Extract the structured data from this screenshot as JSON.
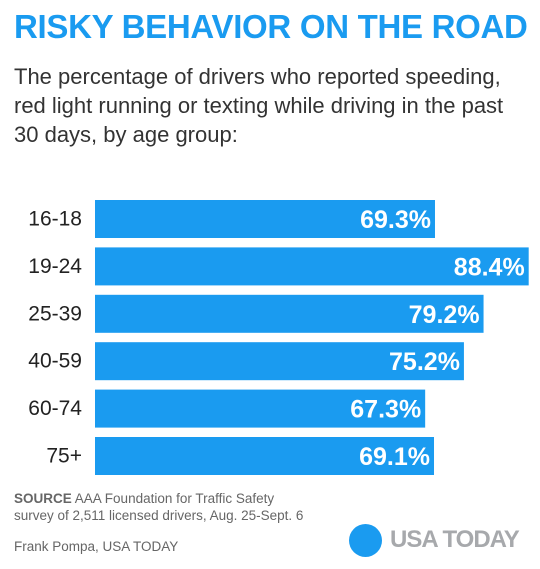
{
  "title": "RISKY BEHAVIOR ON THE ROAD",
  "subtitle": "The percentage of drivers who reported speeding, red light running or texting while driving in the past 30 days, by age group:",
  "chart_data": {
    "type": "bar",
    "orientation": "horizontal",
    "categories": [
      "16-18",
      "19-24",
      "25-39",
      "40-59",
      "60-74",
      "75+"
    ],
    "values": [
      69.3,
      88.4,
      79.2,
      75.2,
      67.3,
      69.1
    ],
    "data_labels": [
      "69.3%",
      "88.4%",
      "79.2%",
      "75.2%",
      "67.3%",
      "69.1%"
    ],
    "xlim": [
      0,
      100
    ],
    "grid": false,
    "legend": "none",
    "bar_color": "#1a9bf0",
    "label_color": "#ffffff"
  },
  "source": {
    "label": "SOURCE",
    "line1": "AAA Foundation for Traffic Safety",
    "line2": "survey of 2,511 licensed drivers, Aug. 25-Sept. 6"
  },
  "credit": "Frank Pompa, USA TODAY",
  "brand": {
    "logo_text": "USA TODAY",
    "accent_color": "#1a9bf0",
    "logo_text_color": "#a7a9ac"
  }
}
